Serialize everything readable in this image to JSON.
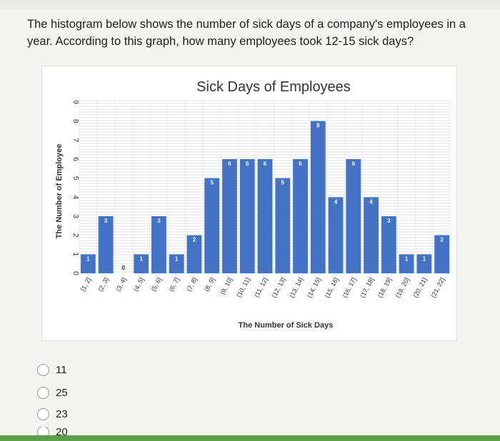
{
  "question": {
    "text": "The histogram below shows the number of sick days of a company's employees in a year. According to this graph, how many employees took 12-15 sick days?"
  },
  "answers": [
    {
      "label": "11"
    },
    {
      "label": "25"
    },
    {
      "label": "23"
    },
    {
      "label": "20"
    }
  ],
  "colors": {
    "bar": "#4472c4",
    "grid": "#d6d6d6",
    "progress_bar": "#5d9e4a"
  },
  "chart_data": {
    "type": "bar",
    "title": "Sick Days of Employees",
    "xlabel": "The Number of Sick Days",
    "ylabel": "The Number of Employee",
    "categories": [
      "[1, 2]",
      "(2, 3]",
      "(3, 4]",
      "(4, 5]",
      "(5, 6]",
      "(6, 7]",
      "(7, 8]",
      "(8, 9]",
      "(9, 10]",
      "(10, 11]",
      "(11, 12]",
      "(12, 13]",
      "(13, 14]",
      "(14, 15]",
      "(15, 16]",
      "(16, 17]",
      "(17, 18]",
      "(18, 19]",
      "(19, 20]",
      "(20, 21]",
      "(21, 22]"
    ],
    "values": [
      1,
      3,
      0,
      1,
      3,
      1,
      2,
      5,
      6,
      6,
      6,
      5,
      6,
      8,
      4,
      6,
      4,
      3,
      1,
      1,
      2
    ],
    "ylim": [
      0,
      9
    ],
    "yticks": [
      0,
      1,
      2,
      3,
      4,
      5,
      6,
      7,
      8,
      9
    ],
    "grid": true
  }
}
